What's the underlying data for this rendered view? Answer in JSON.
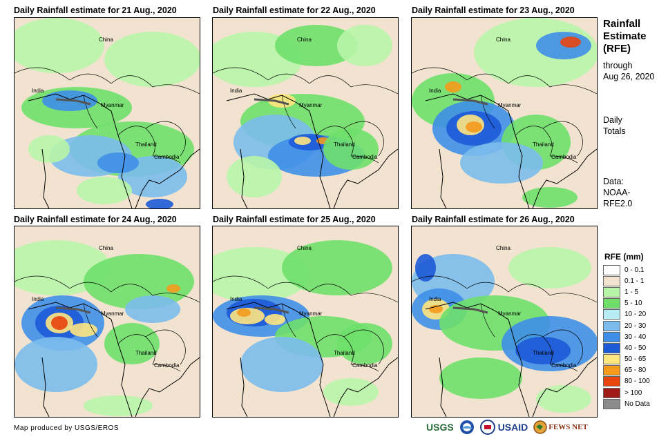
{
  "panels": [
    {
      "title": "Daily Rainfall estimate for 21 Aug., 2020"
    },
    {
      "title": "Daily Rainfall estimate for 22 Aug., 2020"
    },
    {
      "title": "Daily Rainfall estimate for 23 Aug., 2020"
    },
    {
      "title": "Daily Rainfall estimate for 24 Aug., 2020"
    },
    {
      "title": "Daily Rainfall estimate for 25 Aug., 2020"
    },
    {
      "title": "Daily Rainfall estimate for 26 Aug., 2020"
    }
  ],
  "map_labels": {
    "china": "China",
    "india": "India",
    "myanmar": "Myanmar",
    "thailand": "Thailand",
    "cambodia": "Cambodia"
  },
  "sidebar": {
    "title_line1": "Rainfall",
    "title_line2": "Estimate",
    "title_line3": "(RFE)",
    "through_line1": "through",
    "through_line2": "Aug 26, 2020",
    "totals_line1": "Daily",
    "totals_line2": "Totals",
    "data_line1": "Data:",
    "data_line2": "NOAA-",
    "data_line3": "RFE2.0"
  },
  "legend": {
    "title": "RFE (mm)",
    "items": [
      {
        "label": "0 - 0.1",
        "color": "#ffffff"
      },
      {
        "label": "0.1 - 1",
        "color": "#f1e3cf"
      },
      {
        "label": "1 - 5",
        "color": "#b8f5a8"
      },
      {
        "label": "5 - 10",
        "color": "#6ee06a"
      },
      {
        "label": "10 - 20",
        "color": "#b8ecf5"
      },
      {
        "label": "20 - 30",
        "color": "#7bbcec"
      },
      {
        "label": "30 - 40",
        "color": "#3f8fe8"
      },
      {
        "label": "40 - 50",
        "color": "#1d5ad8"
      },
      {
        "label": "50 - 65",
        "color": "#ffe680"
      },
      {
        "label": "65 - 80",
        "color": "#f49b1c"
      },
      {
        "label": "80 - 100",
        "color": "#e8450f"
      },
      {
        "label": "> 100",
        "color": "#a01a18"
      },
      {
        "label": "No Data",
        "color": "#8c8c8c"
      }
    ]
  },
  "credit": "Map produced by USGS/EROS",
  "logos": {
    "usgs": "USGS",
    "usaid": "USAID",
    "fewsnet": "FEWS NET"
  }
}
